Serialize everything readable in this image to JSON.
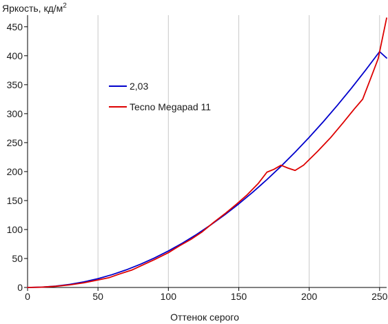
{
  "chart_data": {
    "type": "line",
    "title": "",
    "ylabel": "Яркость, кд/м",
    "ylabel_sup": "2",
    "xlabel": "Оттенок серого",
    "xlim": [
      0,
      255
    ],
    "ylim": [
      0,
      470
    ],
    "xticks": [
      0,
      50,
      100,
      150,
      200,
      250
    ],
    "yticks": [
      0,
      50,
      100,
      150,
      200,
      250,
      300,
      350,
      400,
      450
    ],
    "grid": "vertical-only",
    "legend_position": "upper-left-inside",
    "series": [
      {
        "name": "2,03",
        "color": "#0000cc",
        "x": [
          0,
          10,
          20,
          30,
          40,
          50,
          60,
          70,
          80,
          90,
          100,
          110,
          120,
          130,
          140,
          150,
          160,
          170,
          180,
          190,
          200,
          210,
          220,
          230,
          240,
          250,
          255
        ],
        "y": [
          0,
          0.5,
          2.3,
          5.3,
          9.6,
          15.2,
          22.1,
          30.3,
          39.9,
          50.8,
          63.0,
          76.6,
          91.5,
          107.8,
          125.4,
          144.3,
          164.6,
          186.2,
          209.2,
          233.5,
          259.1,
          286.0,
          314.3,
          343.9,
          374.9,
          407.1,
          396.0
        ]
      },
      {
        "name": "Tecno Megapad 11",
        "color": "#dd0000",
        "x": [
          0,
          10,
          20,
          30,
          40,
          50,
          58,
          65,
          74,
          82,
          90,
          100,
          108,
          116,
          124,
          132,
          140,
          148,
          156,
          164,
          170,
          175,
          180,
          185,
          190,
          196,
          206,
          215,
          224,
          232,
          238,
          244,
          249,
          255
        ],
        "y": [
          0,
          0.5,
          2,
          4.5,
          8,
          13,
          17,
          23,
          30,
          39,
          48,
          60,
          72,
          83,
          96,
          112,
          127,
          143,
          160,
          180,
          199,
          204,
          211,
          206,
          202,
          211,
          235,
          258,
          284,
          308,
          325,
          363,
          395,
          465
        ]
      }
    ]
  }
}
